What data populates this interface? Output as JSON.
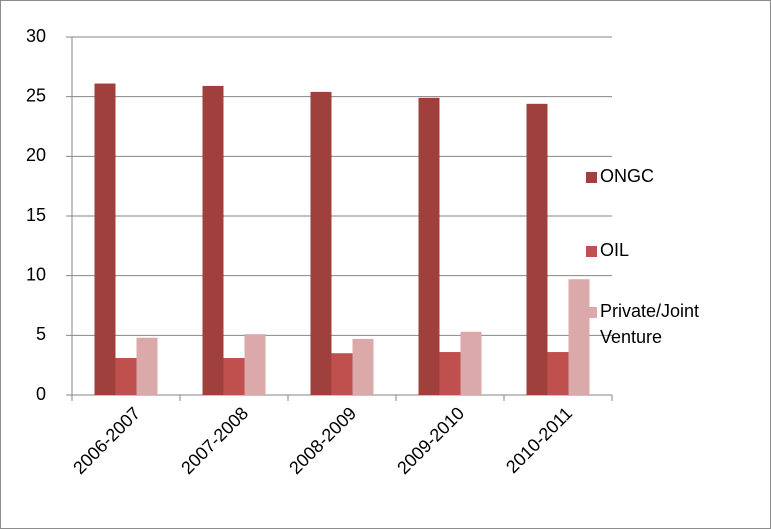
{
  "chart_data": {
    "type": "bar",
    "categories": [
      "2006-2007",
      "2007-2008",
      "2008-2009",
      "2009-2010",
      "2010-2011"
    ],
    "series": [
      {
        "name": "ONGC",
        "color": "#a0403c",
        "values": [
          26.1,
          25.9,
          25.4,
          24.9,
          24.4
        ]
      },
      {
        "name": "OIL",
        "color": "#c0504d",
        "values": [
          3.1,
          3.1,
          3.5,
          3.6,
          3.6
        ]
      },
      {
        "name": "Private/Joint Venture",
        "color": "#dba9a9",
        "values": [
          4.8,
          5.1,
          4.7,
          5.3,
          9.7
        ]
      }
    ],
    "ylim": [
      0,
      30
    ],
    "yticks": [
      0,
      5,
      10,
      15,
      20,
      25,
      30
    ],
    "grid": true,
    "legend": "right"
  }
}
